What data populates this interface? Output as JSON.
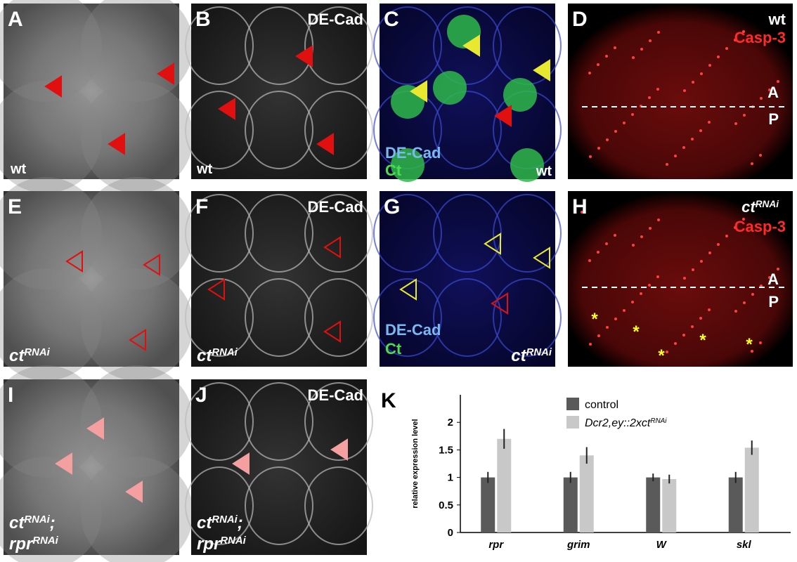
{
  "panels": [
    {
      "letter": "A",
      "labels": [
        {
          "text": "wt"
        }
      ]
    },
    {
      "letter": "B",
      "labels": [
        {
          "text": "DE-Cad"
        },
        {
          "text": "wt"
        }
      ]
    },
    {
      "letter": "C",
      "labels": [
        {
          "text": "DE-Cad"
        },
        {
          "text": "Ct"
        },
        {
          "text": "wt"
        }
      ]
    },
    {
      "letter": "D",
      "labels": [
        {
          "text": "wt"
        },
        {
          "text": "Casp-3"
        },
        {
          "text": "A"
        },
        {
          "text": "P"
        }
      ]
    },
    {
      "letter": "E",
      "labels": [
        {
          "text": "ct",
          "sup": "RNAi"
        }
      ]
    },
    {
      "letter": "F",
      "labels": [
        {
          "text": "DE-Cad"
        },
        {
          "text": "ct",
          "sup": "RNAi"
        }
      ]
    },
    {
      "letter": "G",
      "labels": [
        {
          "text": "DE-Cad"
        },
        {
          "text": "Ct"
        },
        {
          "text": "ct",
          "sup": "RNAi"
        }
      ]
    },
    {
      "letter": "H",
      "labels": [
        {
          "text": "ct",
          "sup": "RNAi"
        },
        {
          "text": "Casp-3"
        },
        {
          "text": "A"
        },
        {
          "text": "P"
        },
        {
          "text": "*"
        },
        {
          "text": "*"
        },
        {
          "text": "*"
        },
        {
          "text": "*"
        },
        {
          "text": "*"
        }
      ]
    },
    {
      "letter": "I",
      "labels": [
        {
          "text": "ct",
          "sup": "RNAi",
          "tail": ";"
        },
        {
          "text": "rpr",
          "sup": "RNAi"
        }
      ]
    },
    {
      "letter": "J",
      "labels": [
        {
          "text": "DE-Cad"
        },
        {
          "text": "ct",
          "sup": "RNAi",
          "tail": ";"
        },
        {
          "text": "rpr",
          "sup": "RNAi"
        }
      ]
    }
  ],
  "chart_data": {
    "type": "bar",
    "letter": "K",
    "y_label": "relative expression level",
    "categories": [
      "rpr",
      "grim",
      "W",
      "skl"
    ],
    "series": [
      {
        "name": "control",
        "color": "#5a5a5a",
        "values": [
          1,
          1,
          1,
          1
        ],
        "errors": [
          0.1,
          0.1,
          0.07,
          0.1
        ]
      },
      {
        "name": "Dcr2,ey::2xct",
        "name_sup": "RNAi",
        "color": "#c8c8c8",
        "values": [
          1.7,
          1.4,
          0.97,
          1.54
        ],
        "errors": [
          0.18,
          0.15,
          0.08,
          0.13
        ]
      }
    ],
    "ylim": [
      0,
      2.5
    ],
    "yticks": [
      0,
      0.5,
      1,
      1.5,
      2
    ]
  }
}
